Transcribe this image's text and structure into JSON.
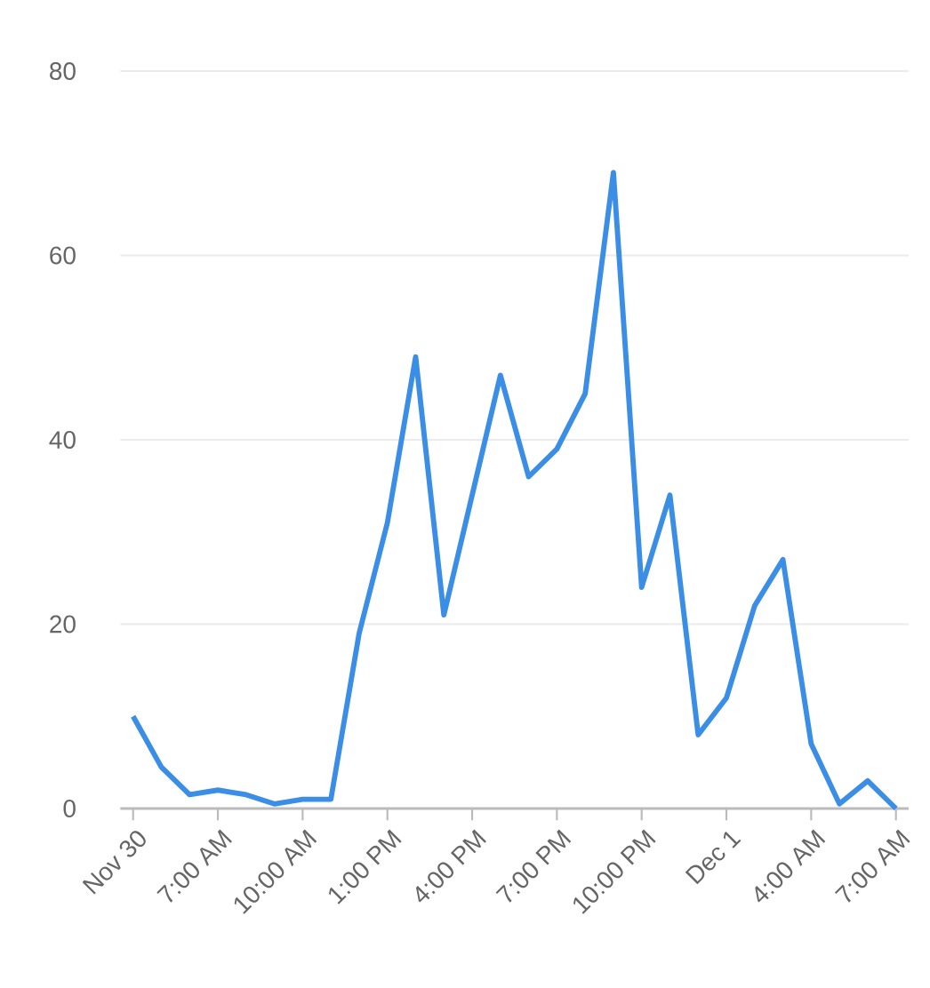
{
  "chart_data": {
    "type": "line",
    "categories": [
      "Nov 30",
      null,
      null,
      "7:00 AM",
      null,
      null,
      "10:00 AM",
      null,
      null,
      "1:00 PM",
      null,
      null,
      "4:00 PM",
      null,
      null,
      "7:00 PM",
      null,
      null,
      "10:00 PM",
      null,
      null,
      "Dec 1",
      null,
      null,
      "4:00 AM",
      null,
      null,
      "7:00 AM"
    ],
    "series": [
      {
        "color": "#3b8ee6",
        "values": [
          10,
          4.5,
          1.5,
          2,
          1.5,
          0.5,
          1,
          1,
          19,
          31,
          49,
          21,
          34,
          47,
          36,
          39,
          45,
          69,
          24,
          34,
          8,
          12,
          22,
          27,
          7,
          0.5,
          3,
          0
        ]
      }
    ],
    "ylim": [
      0,
      80
    ],
    "yticks": [
      0,
      20,
      40,
      60,
      80
    ],
    "grid": "y",
    "marker": "none",
    "line_style": "solid"
  }
}
